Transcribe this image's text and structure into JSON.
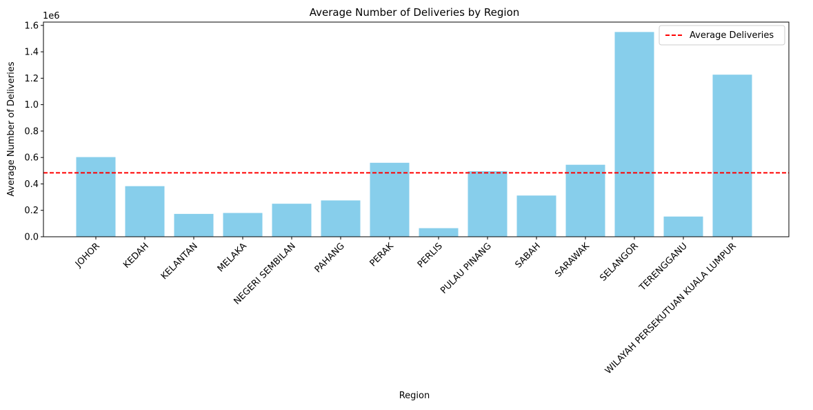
{
  "chart_data": {
    "type": "bar",
    "title": "Average Number of Deliveries by Region",
    "xlabel": "Region",
    "ylabel": "Average Number of Deliveries",
    "y_offset_label": "1e6",
    "y_scale_factor": 1000000,
    "ylim": [
      0,
      1.625
    ],
    "yticks": [
      0.0,
      0.2,
      0.4,
      0.6,
      0.8,
      1.0,
      1.2,
      1.4,
      1.6
    ],
    "ytick_labels": [
      "0.0",
      "0.2",
      "0.4",
      "0.6",
      "0.8",
      "1.0",
      "1.2",
      "1.4",
      "1.6"
    ],
    "categories": [
      "JOHOR",
      "KEDAH",
      "KELANTAN",
      "MELAKA",
      "NEGERI SEMBILAN",
      "PAHANG",
      "PERAK",
      "PERLIS",
      "PULAU PINANG",
      "SABAH",
      "SARAWAK",
      "SELANGOR",
      "TERENGGANU",
      "WILAYAH PERSEKUTUAN KUALA LUMPUR"
    ],
    "values": [
      0.603,
      0.383,
      0.173,
      0.18,
      0.25,
      0.275,
      0.56,
      0.065,
      0.496,
      0.312,
      0.545,
      1.55,
      0.153,
      1.227
    ],
    "bar_color": "#87CEEB",
    "average_line": {
      "name": "Average Deliveries",
      "value": 0.484,
      "color": "#FF0000",
      "style": "dashed"
    },
    "legend_position": "top-right",
    "grid": false
  }
}
